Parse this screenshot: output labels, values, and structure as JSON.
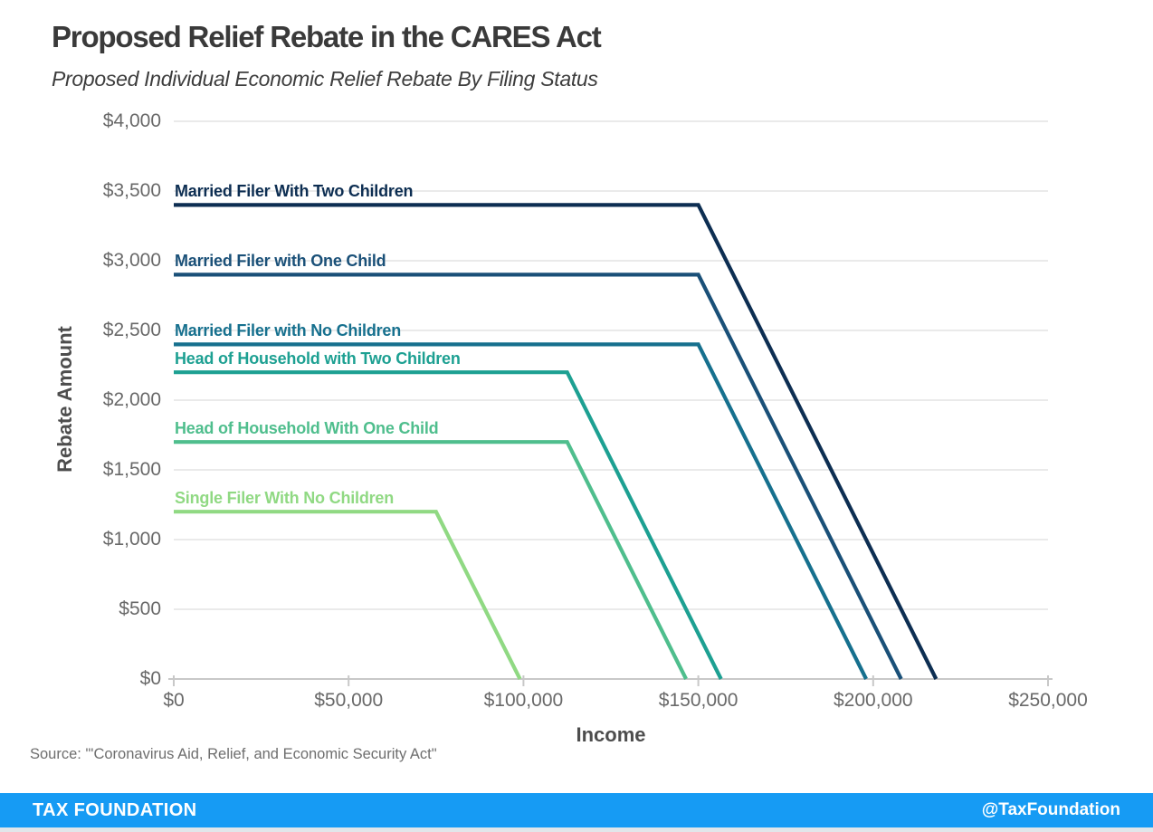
{
  "header": {
    "title": "Proposed Relief Rebate in the CARES Act",
    "subtitle": "Proposed Individual Economic Relief Rebate By Filing Status"
  },
  "source": {
    "text": "Source: \"'Coronavirus Aid, Relief, and Economic Security Act\""
  },
  "footer": {
    "brand": "TAX FOUNDATION",
    "handle": "@TaxFoundation",
    "bar_color": "#169bf4"
  },
  "chart_data": {
    "type": "line",
    "title": "Proposed Relief Rebate in the CARES Act",
    "subtitle": "Proposed Individual Economic Relief Rebate By Filing Status",
    "xlabel": "Income",
    "ylabel": "Rebate Amount",
    "xlim": [
      0,
      250000
    ],
    "ylim": [
      0,
      4000
    ],
    "grid": "horizontal",
    "grid_color": "#e4e4e4",
    "axis_color": "#c8c8c8",
    "legend_position": "inline-labels-above-lines",
    "x_ticks": [
      0,
      50000,
      100000,
      150000,
      200000,
      250000
    ],
    "x_tick_labels": [
      "$0",
      "$50,000",
      "$100,000",
      "$150,000",
      "$200,000",
      "$250,000"
    ],
    "y_ticks": [
      0,
      500,
      1000,
      1500,
      2000,
      2500,
      3000,
      3500,
      4000
    ],
    "y_tick_labels": [
      "$0",
      "$500",
      "$1,000",
      "$1,500",
      "$2,000",
      "$2,500",
      "$3,000",
      "$3,500",
      "$4,000"
    ],
    "series": [
      {
        "name": "Married Filer With Two Children",
        "color": "#0d2e52",
        "flat_rebate": 3400,
        "phaseout_start_income": 150000,
        "zero_income": 218000,
        "points": [
          [
            0,
            3400
          ],
          [
            150000,
            3400
          ],
          [
            218000,
            0
          ]
        ]
      },
      {
        "name": "Married Filer with One Child",
        "color": "#1a5078",
        "flat_rebate": 2900,
        "phaseout_start_income": 150000,
        "zero_income": 208000,
        "points": [
          [
            0,
            2900
          ],
          [
            150000,
            2900
          ],
          [
            208000,
            0
          ]
        ]
      },
      {
        "name": "Married Filer with No Children",
        "color": "#16708e",
        "flat_rebate": 2400,
        "phaseout_start_income": 150000,
        "zero_income": 198000,
        "points": [
          [
            0,
            2400
          ],
          [
            150000,
            2400
          ],
          [
            198000,
            0
          ]
        ]
      },
      {
        "name": "Head of Household with Two Children",
        "color": "#1da092",
        "flat_rebate": 2200,
        "phaseout_start_income": 112500,
        "zero_income": 156500,
        "points": [
          [
            0,
            2200
          ],
          [
            112500,
            2200
          ],
          [
            156500,
            0
          ]
        ]
      },
      {
        "name": "Head of Household With One Child",
        "color": "#4fbe8d",
        "flat_rebate": 1700,
        "phaseout_start_income": 112500,
        "zero_income": 146500,
        "points": [
          [
            0,
            1700
          ],
          [
            112500,
            1700
          ],
          [
            146500,
            0
          ]
        ]
      },
      {
        "name": "Single Filer With No Children",
        "color": "#90d983",
        "flat_rebate": 1200,
        "phaseout_start_income": 75000,
        "zero_income": 99000,
        "points": [
          [
            0,
            1200
          ],
          [
            75000,
            1200
          ],
          [
            99000,
            0
          ]
        ]
      }
    ]
  }
}
